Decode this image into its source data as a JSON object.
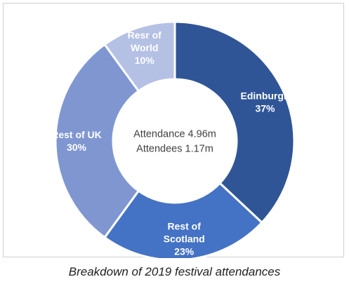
{
  "chart_data": {
    "type": "pie",
    "variant": "donut",
    "categories": [
      "Edinburgh",
      "Rest of Scotland",
      "Rest of UK",
      "Resr of World"
    ],
    "values": [
      37,
      23,
      30,
      10
    ],
    "value_labels": [
      "37%",
      "23%",
      "30%",
      "10%"
    ],
    "label_lines": [
      [
        "Edinburgh",
        "37%"
      ],
      [
        "Rest of",
        "Scotland",
        "23%"
      ],
      [
        "Rest of UK",
        "30%"
      ],
      [
        "Resr of",
        "World",
        "10%"
      ]
    ],
    "colors": [
      "#2f5597",
      "#4472c4",
      "#7f96d1",
      "#b4c0e4"
    ],
    "center_lines": [
      "Attendance  4.96m",
      "Attendees  1.17m"
    ],
    "legend": "none"
  },
  "caption": "Breakdown of 2019 festival attendances"
}
